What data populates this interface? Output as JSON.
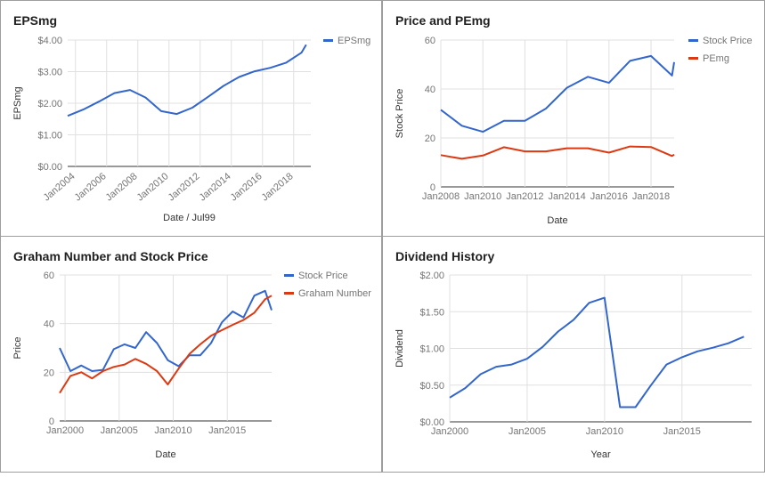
{
  "colors": {
    "blue": "#3366cc",
    "red": "#dc3912",
    "grid": "#e0e0e0",
    "axis": "#333333",
    "text": "#757575"
  },
  "chart_data": [
    {
      "type": "line",
      "title": "EPSmg",
      "xlabel": "Date / Jul99",
      "ylabel": "EPSmg",
      "ylim": [
        0,
        4
      ],
      "xlim": [
        2003.5,
        2019.1
      ],
      "y_ticks": [
        "$0.00",
        "$1.00",
        "$2.00",
        "$3.00",
        "$4.00"
      ],
      "x_ticks": [
        "Jan2004",
        "Jan2006",
        "Jan2008",
        "Jan2010",
        "Jan2012",
        "Jan2014",
        "Jan2016",
        "Jan2018"
      ],
      "legend": "right",
      "series": [
        {
          "name": "EPSmg",
          "color": "#3366cc",
          "x": [
            2003.5,
            2004.5,
            2005.5,
            2006.5,
            2007.5,
            2008.5,
            2009.5,
            2010.5,
            2011.5,
            2012.5,
            2013.5,
            2014.5,
            2015.5,
            2016.5,
            2017.5,
            2018.5,
            2018.8
          ],
          "y": [
            1.6,
            1.8,
            2.05,
            2.32,
            2.42,
            2.18,
            1.75,
            1.66,
            1.86,
            2.2,
            2.55,
            2.83,
            3.01,
            3.12,
            3.28,
            3.6,
            3.85
          ]
        }
      ]
    },
    {
      "type": "line",
      "title": "Price and PEmg",
      "xlabel": "Date",
      "ylabel": "Stock Price",
      "ylim": [
        0,
        60
      ],
      "xlim": [
        2008,
        2019.1
      ],
      "y_ticks": [
        "0",
        "20",
        "40",
        "60"
      ],
      "x_ticks": [
        "Jan2008",
        "Jan2010",
        "Jan2012",
        "Jan2014",
        "Jan2016",
        "Jan2018"
      ],
      "legend": "right",
      "series": [
        {
          "name": "Stock Price",
          "color": "#3366cc",
          "x": [
            2008,
            2009,
            2010,
            2011,
            2012,
            2013,
            2014,
            2015,
            2016,
            2017,
            2018,
            2019,
            2019.1
          ],
          "y": [
            31.5,
            25,
            22.5,
            27,
            27,
            32,
            40.5,
            45,
            42.5,
            51.5,
            53.5,
            45.5,
            51
          ]
        },
        {
          "name": "PEmg",
          "color": "#dc3912",
          "x": [
            2008,
            2009,
            2010,
            2011,
            2012,
            2013,
            2014,
            2015,
            2016,
            2017,
            2018,
            2019,
            2019.1
          ],
          "y": [
            13,
            11.5,
            12.8,
            16.2,
            14.5,
            14.5,
            15.8,
            15.8,
            14,
            16.5,
            16.3,
            12.6,
            13.2
          ]
        }
      ]
    },
    {
      "type": "line",
      "title": "Graham Number and Stock Price",
      "xlabel": "Date",
      "ylabel": "Price",
      "ylim": [
        0,
        60
      ],
      "xlim": [
        1999.5,
        2019.1
      ],
      "y_ticks": [
        "0",
        "20",
        "40",
        "60"
      ],
      "x_ticks": [
        "Jan2000",
        "Jan2005",
        "Jan2010",
        "Jan2015"
      ],
      "legend": "right",
      "series": [
        {
          "name": "Stock Price",
          "color": "#3366cc",
          "x": [
            1999.5,
            2000.5,
            2001.5,
            2002.5,
            2003.5,
            2004.5,
            2005.5,
            2006.5,
            2007.5,
            2008.5,
            2009.5,
            2010.5,
            2011.5,
            2012.5,
            2013.5,
            2014.5,
            2015.5,
            2016.5,
            2017.5,
            2018.5,
            2019.1
          ],
          "y": [
            30,
            20.5,
            22.8,
            20.5,
            21,
            29.5,
            31.5,
            30,
            36.5,
            32,
            25,
            22.5,
            27,
            27,
            32,
            40.5,
            45,
            42.5,
            51.5,
            53.5,
            45.5
          ]
        },
        {
          "name": "Graham Number",
          "color": "#dc3912",
          "x": [
            1999.5,
            2000.5,
            2001.5,
            2002.5,
            2003.5,
            2004.5,
            2005.5,
            2006.5,
            2007.5,
            2008.5,
            2009.5,
            2010.5,
            2011.5,
            2012.5,
            2013.5,
            2014.5,
            2015.5,
            2016.5,
            2017.5,
            2018.5,
            2019.1
          ],
          "y": [
            11.5,
            18.5,
            20,
            17.5,
            20.5,
            22.2,
            23.2,
            25.5,
            23.5,
            20.5,
            15,
            21.5,
            27.5,
            31.5,
            35,
            37.3,
            39.5,
            41.5,
            44.5,
            50,
            51.5
          ]
        }
      ]
    },
    {
      "type": "line",
      "title": "Dividend History",
      "xlabel": "Year",
      "ylabel": "Dividend",
      "ylim": [
        0,
        2
      ],
      "xlim": [
        2000,
        2019.5
      ],
      "y_ticks": [
        "$0.00",
        "$0.50",
        "$1.00",
        "$1.50",
        "$2.00"
      ],
      "x_ticks": [
        "Jan2000",
        "Jan2005",
        "Jan2010",
        "Jan2015"
      ],
      "series": [
        {
          "name": "",
          "color": "#3366cc",
          "x": [
            2000,
            2001,
            2002,
            2003,
            2004,
            2005,
            2006,
            2007,
            2008,
            2009,
            2010,
            2011,
            2012,
            2013,
            2014,
            2015,
            2016,
            2017,
            2018,
            2019
          ],
          "y": [
            0.33,
            0.46,
            0.65,
            0.75,
            0.78,
            0.86,
            1.02,
            1.23,
            1.39,
            1.62,
            1.69,
            0.2,
            0.2,
            0.5,
            0.78,
            0.88,
            0.96,
            1.01,
            1.07,
            1.16
          ]
        }
      ]
    }
  ]
}
